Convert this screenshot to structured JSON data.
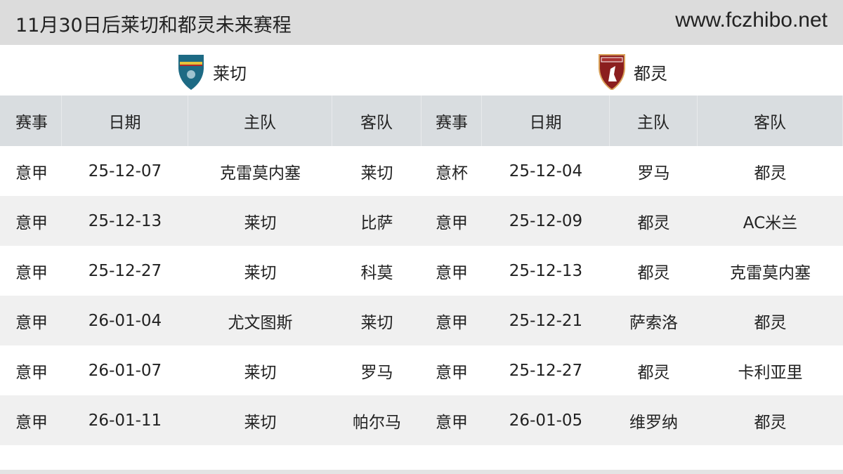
{
  "header": {
    "title": "11月30日后莱切和都灵未来赛程",
    "site": "www.fczhibo.net"
  },
  "teams": [
    {
      "name": "莱切",
      "logo": "lecce-crest-icon",
      "color": "#1d6a84"
    },
    {
      "name": "都灵",
      "logo": "torino-crest-icon",
      "color": "#8b1e1e"
    }
  ],
  "columns": [
    "赛事",
    "日期",
    "主队",
    "客队"
  ],
  "left": [
    [
      "意甲",
      "25-12-07",
      "克雷莫内塞",
      "莱切"
    ],
    [
      "意甲",
      "25-12-13",
      "莱切",
      "比萨"
    ],
    [
      "意甲",
      "25-12-27",
      "莱切",
      "科莫"
    ],
    [
      "意甲",
      "26-01-04",
      "尤文图斯",
      "莱切"
    ],
    [
      "意甲",
      "26-01-07",
      "莱切",
      "罗马"
    ],
    [
      "意甲",
      "26-01-11",
      "莱切",
      "帕尔马"
    ]
  ],
  "right": [
    [
      "意杯",
      "25-12-04",
      "罗马",
      "都灵"
    ],
    [
      "意甲",
      "25-12-09",
      "都灵",
      "AC米兰"
    ],
    [
      "意甲",
      "25-12-13",
      "都灵",
      "克雷莫内塞"
    ],
    [
      "意甲",
      "25-12-21",
      "萨索洛",
      "都灵"
    ],
    [
      "意甲",
      "25-12-27",
      "都灵",
      "卡利亚里"
    ],
    [
      "意甲",
      "26-01-05",
      "维罗纳",
      "都灵"
    ]
  ]
}
